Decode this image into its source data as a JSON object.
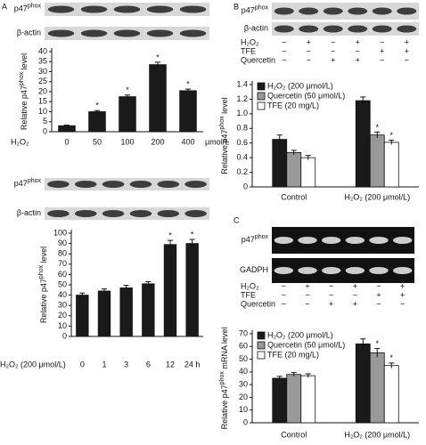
{
  "panel_labels": [
    "A",
    "B",
    "C"
  ],
  "chart_data": [
    {
      "type": "bar",
      "blot_labels": [
        {
          "main": "p47",
          "sup": "phox"
        },
        {
          "main": "β-actin"
        }
      ],
      "x_label": "H₂O₂",
      "x_unit": "μmol/L",
      "categories": [
        "0",
        "50",
        "100",
        "200",
        "400"
      ],
      "values": [
        3,
        10,
        17.5,
        33.5,
        20.5
      ],
      "errors": [
        0.3,
        0.6,
        0.8,
        1.2,
        0.8
      ],
      "significance": [
        null,
        "*",
        "*",
        "*",
        "*"
      ],
      "color": "#1a1a1a",
      "y_label": {
        "pre": "Relative p47",
        "sup": "phox",
        "post": " level"
      },
      "ylim": [
        0,
        40
      ],
      "yticks": [
        0,
        5,
        10,
        15,
        20,
        25,
        30,
        35,
        40
      ]
    },
    {
      "type": "bar",
      "blot_labels": [
        {
          "main": "p47",
          "sup": "phox"
        },
        {
          "main": "β-actin"
        }
      ],
      "x_label": "H₂O₂ (200 μmol/L)",
      "categories": [
        "0",
        "1",
        "3",
        "6",
        "12",
        "24 h"
      ],
      "values": [
        40,
        44,
        47,
        51,
        89,
        90
      ],
      "errors": [
        2,
        2,
        2.5,
        2,
        4,
        4
      ],
      "significance": [
        null,
        null,
        null,
        null,
        "*",
        "*"
      ],
      "color": "#1a1a1a",
      "y_label": {
        "pre": "Relative p47",
        "sup": "phox",
        "post": " level"
      },
      "ylim": [
        0,
        100
      ],
      "yticks": [
        0,
        10,
        20,
        30,
        40,
        50,
        60,
        70,
        80,
        90,
        100
      ]
    },
    {
      "type": "grouped-bar",
      "blot_labels": [
        {
          "main": "p47",
          "sup": "phox"
        },
        {
          "main": "β-actin"
        }
      ],
      "treatments": [
        {
          "name": "H₂O₂",
          "signs": [
            "−",
            "+",
            "−",
            "+",
            "−",
            "+"
          ]
        },
        {
          "name": "TFE",
          "signs": [
            "−",
            "−",
            "−",
            "−",
            "+",
            "+"
          ]
        },
        {
          "name": "Quercetin",
          "signs": [
            "−",
            "−",
            "+",
            "+",
            "−",
            "−"
          ]
        }
      ],
      "categories": [
        "Control",
        "H₂O₂ (200 μmol/L)"
      ],
      "series": [
        {
          "name": "H₂O₂ (200 μmol/L)",
          "color": "#1a1a1a",
          "values": [
            0.65,
            1.18
          ],
          "errors": [
            0.06,
            0.05
          ],
          "significance": [
            null,
            null
          ]
        },
        {
          "name": "Quercetin (50 μmol/L)",
          "color": "#999999",
          "values": [
            0.47,
            0.71
          ],
          "errors": [
            0.03,
            0.04
          ],
          "significance": [
            null,
            "*"
          ]
        },
        {
          "name": "TFE (20 mg/L)",
          "color": "#ffffff",
          "values": [
            0.4,
            0.61
          ],
          "errors": [
            0.03,
            0.03
          ],
          "significance": [
            null,
            "*"
          ]
        }
      ],
      "legend": "top-left",
      "y_label": {
        "pre": "Relative p47",
        "sup": "phox",
        "post": " level"
      },
      "ylim": [
        0,
        1.4
      ],
      "yticks": [
        0,
        0.2,
        0.4,
        0.6,
        0.8,
        {
          "value": 1,
          "label": "1.0"
        },
        1.2,
        1.4
      ]
    },
    {
      "type": "grouped-bar",
      "blot_labels": [
        {
          "main": "p47",
          "sup": "phox"
        },
        {
          "main": "GADPH"
        }
      ],
      "treatments": [
        {
          "name": "H₂O₂",
          "signs": [
            "−",
            "+",
            "−",
            "+",
            "−",
            "+"
          ]
        },
        {
          "name": "TFE",
          "signs": [
            "−",
            "−",
            "−",
            "−",
            "+",
            "+"
          ]
        },
        {
          "name": "Quercetin",
          "signs": [
            "−",
            "−",
            "+",
            "+",
            "−",
            "−"
          ]
        }
      ],
      "categories": [
        "Control",
        "H₂O₂ (200 μmol/L)"
      ],
      "series": [
        {
          "name": "H₂O₂ (200 μmol/L)",
          "color": "#1a1a1a",
          "values": [
            35,
            62
          ],
          "errors": [
            1.5,
            4
          ],
          "significance": [
            null,
            null
          ]
        },
        {
          "name": "Quercetin (50 μmol/L)",
          "color": "#999999",
          "values": [
            38,
            55
          ],
          "errors": [
            1.5,
            3.5
          ],
          "significance": [
            null,
            "*"
          ]
        },
        {
          "name": "TFE (20 mg/L)",
          "color": "#ffffff",
          "values": [
            37,
            45
          ],
          "errors": [
            1.5,
            2
          ],
          "significance": [
            null,
            "*"
          ]
        }
      ],
      "legend": "top-left",
      "y_label": {
        "pre": "Relative p47",
        "sup": "phox",
        "post": " mRNA level"
      },
      "ylim": [
        0,
        70
      ],
      "yticks": [
        0,
        10,
        20,
        30,
        40,
        50,
        60,
        70
      ]
    }
  ]
}
